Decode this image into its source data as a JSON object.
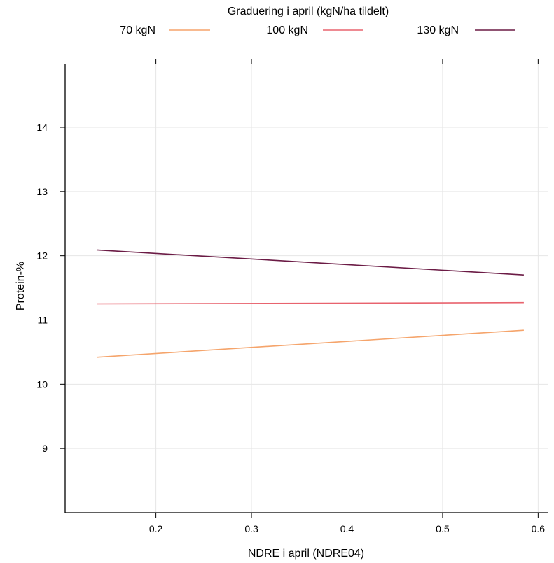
{
  "chart_data": {
    "type": "line",
    "title": "",
    "legend": {
      "title": "Graduering i april (kgN/ha tildelt)",
      "placement": "top"
    },
    "xlabel": "NDRE i april (NDRE04)",
    "ylabel": "Protein-%",
    "xlim": [
      0.105,
      0.61
    ],
    "ylim": [
      8.0,
      14.98
    ],
    "xticks": [
      0.2,
      0.3,
      0.4,
      0.5,
      0.6
    ],
    "xtick_labels": [
      "0.2",
      "0.3",
      "0.4",
      "0.5",
      "0.6"
    ],
    "yticks": [
      9,
      10,
      11,
      12,
      13,
      14
    ],
    "ytick_labels": [
      "9",
      "10",
      "11",
      "12",
      "13",
      "14"
    ],
    "grid": true,
    "series": [
      {
        "name": "70 kgN",
        "color": "#f5a46b",
        "x": [
          0.138,
          0.585
        ],
        "y": [
          10.42,
          10.84
        ]
      },
      {
        "name": "100 kgN",
        "color": "#e8636e",
        "x": [
          0.138,
          0.585
        ],
        "y": [
          11.25,
          11.27
        ]
      },
      {
        "name": "130 kgN",
        "color": "#6b1b45",
        "x": [
          0.138,
          0.585
        ],
        "y": [
          12.09,
          11.7
        ]
      }
    ]
  }
}
